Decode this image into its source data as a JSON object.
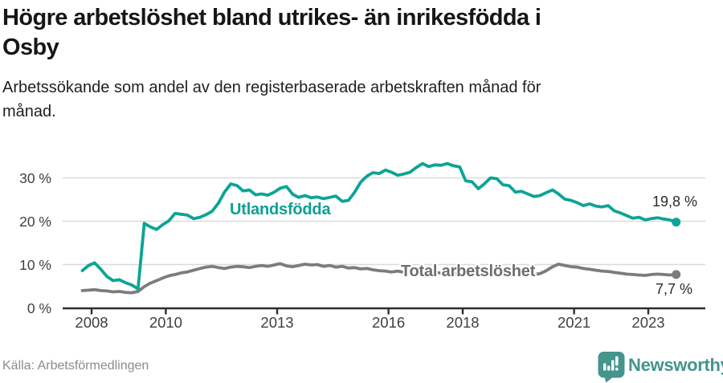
{
  "header": {
    "title_lines": [
      "Högre arbetslöshet bland utrikes- än inrikesfödda i",
      "Osby"
    ],
    "subtitle_lines": [
      "Arbetssökande som andel av den registerbaserade arbetskraften månad för",
      "månad."
    ]
  },
  "footer": {
    "source": "Källa: Arbetsförmedlingen",
    "brand": "Newsworthy"
  },
  "colors": {
    "series_utlandsfodda": "#0ca496",
    "series_total": "#7c7c7c",
    "grid": "#dadada",
    "axis": "#2e2e2e",
    "brand_teal": "#45948e"
  },
  "chart_data": {
    "type": "line",
    "title": "Högre arbetslöshet bland utrikes- än inrikesfödda i Osby",
    "subtitle": "Arbetssökande som andel av den registerbaserade arbetskraften månad för månad.",
    "xlabel": "",
    "ylabel": "",
    "grid": "horizontal",
    "legend_position": "inline-labels",
    "xlim": [
      2007.75,
      2023.75
    ],
    "ylim": [
      0,
      35
    ],
    "x_ticks": [
      2008,
      2010,
      2013,
      2016,
      2018,
      2021,
      2023
    ],
    "x_tick_labels": [
      "2008",
      "2010",
      "2013",
      "2016",
      "2018",
      "2021",
      "2023"
    ],
    "y_ticks": [
      0,
      10,
      20,
      30
    ],
    "y_tick_labels": [
      "0 %",
      "10 %",
      "20 %",
      "30 %"
    ],
    "x": [
      2007.75,
      2007.92,
      2008.08,
      2008.25,
      2008.42,
      2008.58,
      2008.75,
      2008.92,
      2009.08,
      2009.25,
      2009.42,
      2009.58,
      2009.75,
      2009.92,
      2010.08,
      2010.25,
      2010.42,
      2010.58,
      2010.75,
      2010.92,
      2011.08,
      2011.25,
      2011.42,
      2011.58,
      2011.75,
      2011.92,
      2012.08,
      2012.25,
      2012.42,
      2012.58,
      2012.75,
      2012.92,
      2013.08,
      2013.25,
      2013.42,
      2013.58,
      2013.75,
      2013.92,
      2014.08,
      2014.25,
      2014.42,
      2014.58,
      2014.75,
      2014.92,
      2015.08,
      2015.25,
      2015.42,
      2015.58,
      2015.75,
      2015.92,
      2016.08,
      2016.25,
      2016.42,
      2016.58,
      2016.75,
      2016.92,
      2017.08,
      2017.25,
      2017.42,
      2017.58,
      2017.75,
      2017.92,
      2018.08,
      2018.25,
      2018.42,
      2018.58,
      2018.75,
      2018.92,
      2019.08,
      2019.25,
      2019.42,
      2019.58,
      2019.75,
      2019.92,
      2020.08,
      2020.25,
      2020.42,
      2020.58,
      2020.75,
      2020.92,
      2021.08,
      2021.25,
      2021.42,
      2021.58,
      2021.75,
      2021.92,
      2022.08,
      2022.25,
      2022.42,
      2022.58,
      2022.75,
      2022.92,
      2023.08,
      2023.25,
      2023.42,
      2023.58,
      2023.75
    ],
    "series": [
      {
        "name": "Utlandsfödda",
        "color": "#0ca496",
        "end_label": "19,8 %",
        "end_value": 19.8,
        "values": [
          8.6,
          9.8,
          10.4,
          8.9,
          7.2,
          6.3,
          6.5,
          5.8,
          5.3,
          4.4,
          19.5,
          18.7,
          18.1,
          19.2,
          20.1,
          21.8,
          21.6,
          21.4,
          20.6,
          20.9,
          21.5,
          22.3,
          24.2,
          26.7,
          28.6,
          28.2,
          27.0,
          27.2,
          26.1,
          26.3,
          26.0,
          26.7,
          27.6,
          28.0,
          26.2,
          25.5,
          25.9,
          25.4,
          25.6,
          25.2,
          25.5,
          25.8,
          24.6,
          24.8,
          26.6,
          29.0,
          30.4,
          31.2,
          31.0,
          31.8,
          31.3,
          30.6,
          30.9,
          31.3,
          32.4,
          33.3,
          32.6,
          33.0,
          32.9,
          33.3,
          32.8,
          32.5,
          29.3,
          29.1,
          27.5,
          28.6,
          30.0,
          29.8,
          28.4,
          28.2,
          26.7,
          26.9,
          26.3,
          25.7,
          25.9,
          26.6,
          27.2,
          26.3,
          25.1,
          24.8,
          24.3,
          23.6,
          24.0,
          23.5,
          23.3,
          23.6,
          22.4,
          21.9,
          21.3,
          20.7,
          20.9,
          20.3,
          20.6,
          20.8,
          20.5,
          20.3,
          19.8
        ]
      },
      {
        "name": "Total arbetslöshet",
        "color": "#7c7c7c",
        "end_label": "7,7 %",
        "end_value": 7.7,
        "values": [
          4.0,
          4.1,
          4.2,
          4.0,
          3.9,
          3.7,
          3.8,
          3.6,
          3.5,
          3.8,
          4.9,
          5.7,
          6.3,
          6.9,
          7.4,
          7.7,
          8.1,
          8.3,
          8.7,
          9.1,
          9.4,
          9.6,
          9.3,
          9.1,
          9.4,
          9.6,
          9.5,
          9.3,
          9.6,
          9.8,
          9.6,
          9.9,
          10.2,
          9.7,
          9.5,
          9.8,
          10.1,
          9.9,
          10.0,
          9.6,
          9.8,
          9.4,
          9.6,
          9.2,
          9.3,
          9.0,
          9.1,
          8.8,
          8.6,
          8.5,
          8.3,
          8.5,
          8.2,
          8.0,
          8.2,
          7.9,
          8.1,
          8.3,
          8.0,
          8.2,
          7.9,
          8.1,
          8.0,
          7.8,
          7.7,
          7.9,
          7.7,
          7.9,
          8.0,
          7.8,
          7.6,
          7.7,
          7.5,
          7.7,
          7.9,
          8.6,
          9.5,
          10.1,
          9.8,
          9.5,
          9.4,
          9.1,
          8.9,
          8.7,
          8.5,
          8.4,
          8.2,
          8.0,
          7.8,
          7.7,
          7.6,
          7.5,
          7.7,
          7.8,
          7.7,
          7.6,
          7.7
        ]
      }
    ]
  }
}
